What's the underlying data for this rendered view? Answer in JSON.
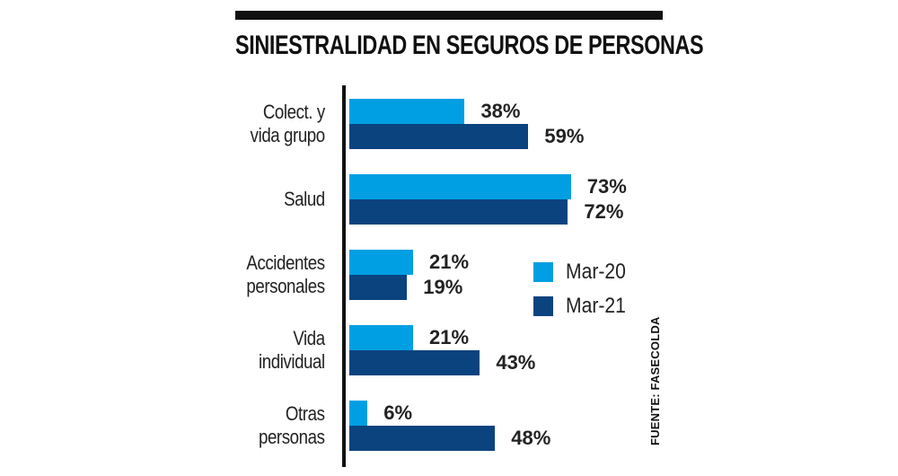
{
  "chart_data": {
    "type": "bar",
    "orientation": "horizontal",
    "title": "SINIESTRALIDAD EN SEGUROS DE PERSONAS",
    "categories": [
      "Colect. y\nvida grupo",
      "Salud",
      "Accidentes\npersonales",
      "Vida\nindividual",
      "Otras\npersonas"
    ],
    "series": [
      {
        "name": "Mar-20",
        "color": "#009fe3",
        "values": [
          38,
          73,
          21,
          21,
          6
        ],
        "labels": [
          "38%",
          "73%",
          "21%",
          "21%",
          "6%"
        ]
      },
      {
        "name": "Mar-21",
        "color": "#0b437f",
        "values": [
          59,
          72,
          19,
          43,
          48
        ],
        "labels": [
          "59%",
          "72%",
          "19%",
          "43%",
          "48%"
        ]
      }
    ],
    "value_unit": "%",
    "legend_position": "right",
    "grid": false,
    "source": "FUENTE: FASECOLDA"
  }
}
